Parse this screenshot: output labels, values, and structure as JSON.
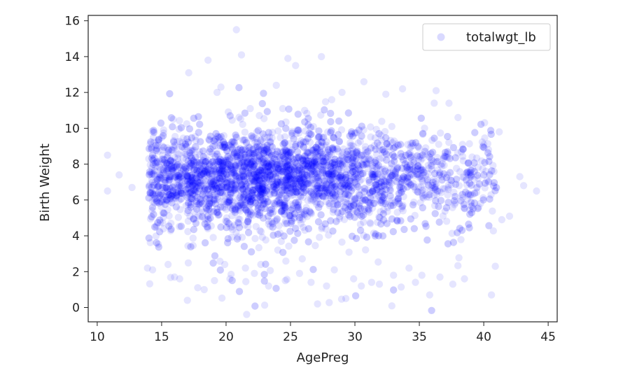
{
  "chart_data": {
    "type": "scatter",
    "xlabel": "AgePreg",
    "ylabel": "Birth Weight",
    "xlim": [
      9.3,
      45.7
    ],
    "ylim": [
      -0.8,
      16.3
    ],
    "xticks": [
      10,
      15,
      20,
      25,
      30,
      35,
      40,
      45
    ],
    "yticks": [
      0,
      2,
      4,
      6,
      8,
      10,
      12,
      14,
      16
    ],
    "grid": false,
    "legend_position": "top-right",
    "series": [
      {
        "name": "totalwgt_lb",
        "color": "#0000ff",
        "alpha": 0.1,
        "marker": "circle",
        "bulk_distribution": {
          "x_range": [
            14,
            41
          ],
          "x_mode": 23,
          "y_mean": 7.3,
          "y_sd": 1.3,
          "count": 4000
        },
        "points": [
          [
            10.8,
            8.5
          ],
          [
            10.8,
            6.5
          ],
          [
            11.7,
            7.4
          ],
          [
            12.7,
            6.7
          ],
          [
            13.9,
            2.2
          ],
          [
            14.3,
            2.1
          ],
          [
            15.5,
            2.4
          ],
          [
            16.0,
            1.7
          ],
          [
            16.4,
            1.6
          ],
          [
            17.0,
            0.4
          ],
          [
            17.1,
            13.1
          ],
          [
            17.8,
            1.1
          ],
          [
            18.3,
            1.0
          ],
          [
            18.6,
            13.8
          ],
          [
            19.1,
            1.5
          ],
          [
            19.3,
            12.0
          ],
          [
            19.6,
            12.3
          ],
          [
            19.9,
            2.4
          ],
          [
            20.3,
            1.6
          ],
          [
            20.8,
            15.5
          ],
          [
            21.2,
            14.1
          ],
          [
            21.5,
            2.2
          ],
          [
            22.2,
            1.9
          ],
          [
            22.7,
            2.4
          ],
          [
            23.3,
            1.2
          ],
          [
            23.9,
            12.4
          ],
          [
            24.4,
            11.1
          ],
          [
            24.6,
            1.5
          ],
          [
            24.8,
            13.9
          ],
          [
            25.4,
            13.5
          ],
          [
            25.7,
            1.9
          ],
          [
            26.1,
            11.0
          ],
          [
            26.6,
            1.4
          ],
          [
            27.1,
            0.2
          ],
          [
            27.4,
            14.0
          ],
          [
            27.8,
            1.2
          ],
          [
            28.2,
            11.6
          ],
          [
            28.4,
            2.1
          ],
          [
            29.0,
            12.0
          ],
          [
            29.3,
            0.5
          ],
          [
            29.9,
            1.6
          ],
          [
            30.5,
            1.2
          ],
          [
            30.7,
            12.6
          ],
          [
            31.3,
            1.4
          ],
          [
            31.9,
            1.3
          ],
          [
            32.4,
            11.9
          ],
          [
            33.0,
            1.8
          ],
          [
            33.7,
            12.2
          ],
          [
            34.2,
            2.2
          ],
          [
            34.7,
            1.4
          ],
          [
            35.2,
            1.8
          ],
          [
            35.8,
            0.7
          ],
          [
            36.3,
            12.1
          ],
          [
            36.6,
            1.7
          ],
          [
            37.3,
            11.4
          ],
          [
            37.6,
            1.3
          ],
          [
            38.0,
            10.6
          ],
          [
            38.5,
            1.6
          ],
          [
            39.1,
            8.4
          ],
          [
            39.6,
            5.6
          ],
          [
            40.0,
            9.1
          ],
          [
            40.6,
            0.7
          ],
          [
            40.9,
            2.3
          ],
          [
            41.2,
            9.8
          ],
          [
            41.4,
            4.9
          ],
          [
            42.0,
            5.1
          ],
          [
            42.8,
            7.3
          ],
          [
            43.1,
            6.8
          ],
          [
            44.1,
            6.5
          ]
        ]
      }
    ]
  }
}
